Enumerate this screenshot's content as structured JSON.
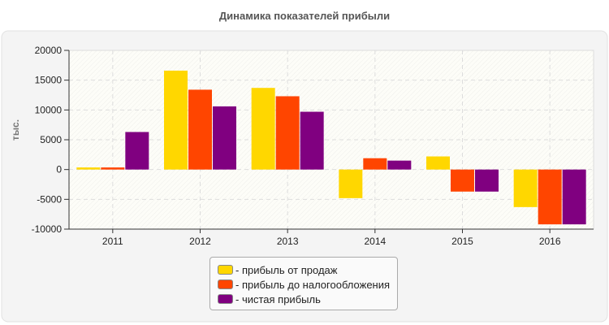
{
  "chart_data": {
    "type": "bar",
    "title": "Динамика показателей прибыли",
    "xlabel": "",
    "ylabel": "тыс.",
    "ylim": [
      -10000,
      20000
    ],
    "yticks": [
      "20000",
      "15000",
      "10000",
      "5000",
      "0",
      "-5000",
      "-10000"
    ],
    "ytick_values": [
      20000,
      15000,
      10000,
      5000,
      0,
      -5000,
      -10000
    ],
    "grid": true,
    "legend_position": "bottom",
    "categories": [
      "2011",
      "2012",
      "2013",
      "2014",
      "2015",
      "2016"
    ],
    "series": [
      {
        "name": "- прибыль от продаж",
        "color": "#ffd700",
        "values": [
          350,
          16600,
          13700,
          -4800,
          2200,
          -6300
        ]
      },
      {
        "name": "- прибыль до налогообложения",
        "color": "#ff4500",
        "values": [
          350,
          13400,
          12300,
          1900,
          -3700,
          -9200
        ]
      },
      {
        "name": "- чистая прибыль",
        "color": "#800080",
        "values": [
          6300,
          10600,
          9700,
          1500,
          -3700,
          -9200
        ]
      }
    ]
  }
}
